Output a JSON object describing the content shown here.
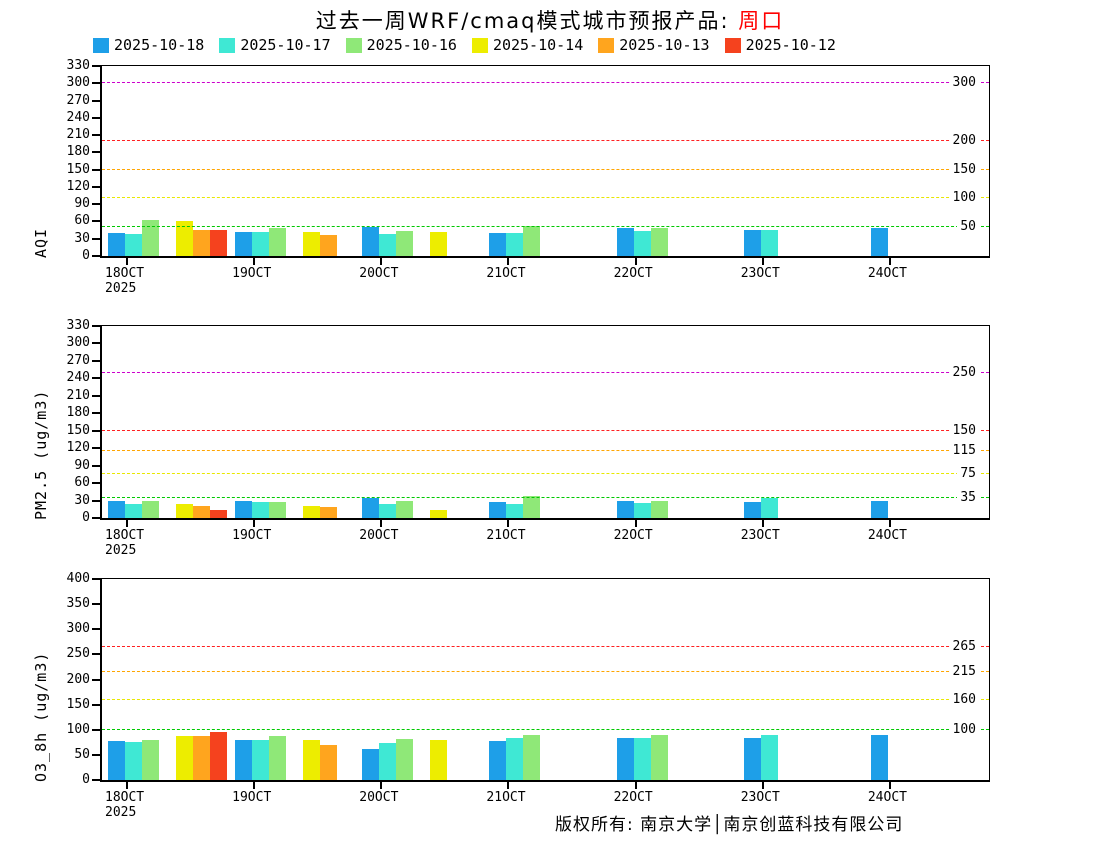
{
  "title": {
    "text": "过去一周WRF/cmaq模式城市预报产品: ",
    "city": "周口"
  },
  "legend": [
    {
      "label": "2025-10-18",
      "color": "#1E9FE8"
    },
    {
      "label": "2025-10-17",
      "color": "#3FE8D4"
    },
    {
      "label": "2025-10-16",
      "color": "#8FE878"
    },
    {
      "label": "2025-10-14",
      "color": "#EDED00"
    },
    {
      "label": "2025-10-13",
      "color": "#FFA51E"
    },
    {
      "label": "2025-10-12",
      "color": "#F5421E"
    }
  ],
  "footer": {
    "text": "版权所有: 南京大学│南京创蓝科技有限公司"
  },
  "chart_data": [
    {
      "type": "bar",
      "ylabel": "AQI",
      "ylim": [
        0,
        330
      ],
      "ytick_step": 30,
      "grid": false,
      "legend_position": "top",
      "categories": [
        "18OCT\n2025",
        "19OCT",
        "20OCT",
        "21OCT",
        "22OCT",
        "23OCT",
        "24OCT"
      ],
      "slots_per_group": 7,
      "series": [
        {
          "name": "2025-10-18",
          "color": "#1E9FE8",
          "slot": 0,
          "values": [
            40,
            42,
            50,
            40,
            48,
            45,
            48
          ]
        },
        {
          "name": "2025-10-17",
          "color": "#3FE8D4",
          "slot": 1,
          "values": [
            38,
            42,
            38,
            40,
            44,
            45,
            null
          ]
        },
        {
          "name": "2025-10-16",
          "color": "#8FE878",
          "slot": 2,
          "values": [
            63,
            48,
            44,
            53,
            48,
            null,
            null
          ]
        },
        {
          "name": "2025-10-14",
          "color": "#EDED00",
          "slot": 4,
          "values": [
            60,
            41,
            41,
            null,
            null,
            null,
            null
          ]
        },
        {
          "name": "2025-10-13",
          "color": "#FFA51E",
          "slot": 5,
          "values": [
            46,
            36,
            null,
            null,
            null,
            null,
            null
          ]
        },
        {
          "name": "2025-10-12",
          "color": "#F5421E",
          "slot": 6,
          "values": [
            46,
            null,
            null,
            null,
            null,
            null,
            null
          ]
        }
      ],
      "thresholds": [
        {
          "value": 50,
          "color": "#00C800",
          "label": "50"
        },
        {
          "value": 100,
          "color": "#E8E800",
          "label": "100"
        },
        {
          "value": 150,
          "color": "#FFA500",
          "label": "150"
        },
        {
          "value": 200,
          "color": "#FF2020",
          "label": "200"
        },
        {
          "value": 300,
          "color": "#CC00CC",
          "label": "300"
        }
      ]
    },
    {
      "type": "bar",
      "ylabel": "PM2.5 (ug/m3)",
      "ylim": [
        0,
        330
      ],
      "ytick_step": 30,
      "grid": false,
      "categories": [
        "18OCT\n2025",
        "19OCT",
        "20OCT",
        "21OCT",
        "22OCT",
        "23OCT",
        "24OCT"
      ],
      "slots_per_group": 7,
      "series": [
        {
          "name": "2025-10-18",
          "color": "#1E9FE8",
          "slot": 0,
          "values": [
            30,
            29,
            34,
            27,
            29,
            27,
            29
          ]
        },
        {
          "name": "2025-10-17",
          "color": "#3FE8D4",
          "slot": 1,
          "values": [
            24,
            27,
            24,
            24,
            26,
            35,
            null
          ]
        },
        {
          "name": "2025-10-16",
          "color": "#8FE878",
          "slot": 2,
          "values": [
            30,
            27,
            30,
            37,
            29,
            null,
            null
          ]
        },
        {
          "name": "2025-10-14",
          "color": "#EDED00",
          "slot": 4,
          "values": [
            24,
            20,
            14,
            null,
            null,
            null,
            null
          ]
        },
        {
          "name": "2025-10-13",
          "color": "#FFA51E",
          "slot": 5,
          "values": [
            20,
            19,
            null,
            null,
            null,
            null,
            null
          ]
        },
        {
          "name": "2025-10-12",
          "color": "#F5421E",
          "slot": 6,
          "values": [
            14,
            null,
            null,
            null,
            null,
            null,
            null
          ]
        }
      ],
      "thresholds": [
        {
          "value": 35,
          "color": "#00C800",
          "label": "35"
        },
        {
          "value": 75,
          "color": "#E8E800",
          "label": "75"
        },
        {
          "value": 115,
          "color": "#FFA500",
          "label": "115"
        },
        {
          "value": 150,
          "color": "#FF2020",
          "label": "150"
        },
        {
          "value": 250,
          "color": "#CC00CC",
          "label": "250"
        }
      ]
    },
    {
      "type": "bar",
      "ylabel": "O3_8h (ug/m3)",
      "ylim": [
        0,
        400
      ],
      "ytick_step": 50,
      "grid": false,
      "categories": [
        "18OCT\n2025",
        "19OCT",
        "20OCT",
        "21OCT",
        "22OCT",
        "23OCT",
        "24OCT"
      ],
      "slots_per_group": 7,
      "series": [
        {
          "name": "2025-10-18",
          "color": "#1E9FE8",
          "slot": 0,
          "values": [
            78,
            80,
            62,
            78,
            84,
            84,
            90
          ]
        },
        {
          "name": "2025-10-17",
          "color": "#3FE8D4",
          "slot": 1,
          "values": [
            76,
            80,
            74,
            84,
            84,
            90,
            null
          ]
        },
        {
          "name": "2025-10-16",
          "color": "#8FE878",
          "slot": 2,
          "values": [
            80,
            88,
            82,
            90,
            90,
            null,
            null
          ]
        },
        {
          "name": "2025-10-14",
          "color": "#EDED00",
          "slot": 4,
          "values": [
            88,
            80,
            80,
            null,
            null,
            null,
            null
          ]
        },
        {
          "name": "2025-10-13",
          "color": "#FFA51E",
          "slot": 5,
          "values": [
            88,
            70,
            null,
            null,
            null,
            null,
            null
          ]
        },
        {
          "name": "2025-10-12",
          "color": "#F5421E",
          "slot": 6,
          "values": [
            96,
            null,
            null,
            null,
            null,
            null,
            null
          ]
        }
      ],
      "thresholds": [
        {
          "value": 100,
          "color": "#00C800",
          "label": "100"
        },
        {
          "value": 160,
          "color": "#E8E800",
          "label": "160"
        },
        {
          "value": 215,
          "color": "#FFA500",
          "label": "215"
        },
        {
          "value": 265,
          "color": "#FF2020",
          "label": "265"
        }
      ]
    }
  ]
}
